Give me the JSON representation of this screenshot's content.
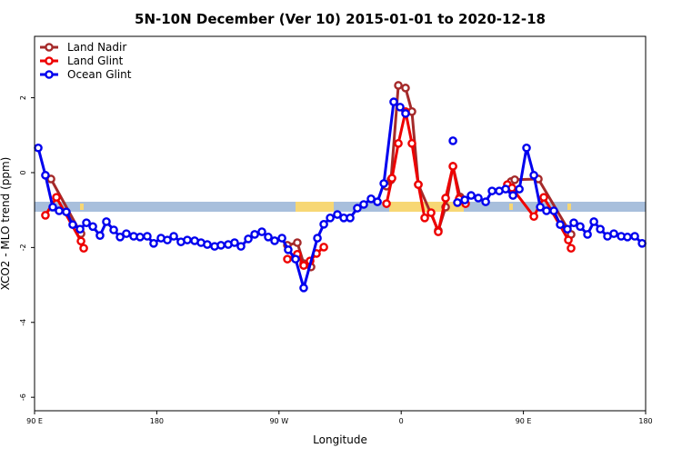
{
  "chart_data": {
    "type": "line",
    "title": "5N-10N December (Ver 10)   2015-01-01 to 2020-12-18",
    "x_label": "Longitude",
    "y_label": "XCO2 - MLO trend (ppm)",
    "xlim": [
      90,
      540
    ],
    "xticks": [
      {
        "value": 90,
        "label": "90 E"
      },
      {
        "value": 180,
        "label": "180"
      },
      {
        "value": 270,
        "label": "90 W"
      },
      {
        "value": 360,
        "label": "0"
      },
      {
        "value": 450,
        "label": "90 E"
      },
      {
        "value": 540,
        "label": "180"
      }
    ],
    "ylim": [
      -6.36,
      3.64
    ],
    "yticks": [
      2,
      0,
      -2,
      -4,
      -6
    ],
    "legend": "top-left",
    "series": [
      {
        "name": "Land Nadir",
        "color": "#a52a2a",
        "x": [
          102.1,
          124.2,
          null,
          276.2,
          283.5,
          288.2,
          293.6,
          null,
          349.2,
          352.5,
          357.9,
          363.2,
          367.9,
          372.6,
          387.3,
          392.7,
          398.1,
          403.4,
          null,
          440.9,
          443.6,
          461.0,
          485.1
        ],
        "values": [
          -0.17,
          -1.63,
          null,
          -1.94,
          -1.87,
          -2.43,
          -2.52,
          null,
          -0.36,
          -0.19,
          2.33,
          2.26,
          1.63,
          -0.32,
          -1.55,
          -0.92,
          0.17,
          -0.65,
          null,
          -0.24,
          -0.19,
          -0.17,
          -1.65
        ]
      },
      {
        "name": "Land Glint",
        "color": "#ee0000",
        "x": [
          98.0,
          106.1,
          124.2,
          126.2,
          null,
          276.2,
          283.5,
          288.2,
          292.9,
          297.6,
          303.0,
          null,
          349.2,
          353.2,
          357.9,
          363.2,
          367.9,
          372.6,
          377.3,
          382.0,
          387.3,
          392.7,
          398.1,
          402.7,
          407.4,
          null,
          438.2,
          441.6,
          457.7,
          465.0,
          483.1,
          485.1
        ],
        "values": [
          -1.14,
          -0.66,
          -1.83,
          -2.02,
          null,
          -2.31,
          -2.18,
          -2.48,
          -2.36,
          -2.16,
          -1.99,
          null,
          -0.83,
          -0.15,
          0.78,
          1.63,
          0.78,
          -0.32,
          -1.21,
          -1.07,
          -1.58,
          -0.68,
          0.17,
          -0.7,
          -0.83,
          null,
          -0.32,
          -0.41,
          -1.17,
          -0.66,
          -1.8,
          -2.02
        ]
      },
      {
        "name": "Ocean Glint",
        "color": "#0000ee",
        "x": [
          92.7,
          98.0,
          103.4,
          108.1,
          113.4,
          118.1,
          123.5,
          128.2,
          132.9,
          138.2,
          142.9,
          148.3,
          153.0,
          157.6,
          163.0,
          167.7,
          173.0,
          177.7,
          183.1,
          187.8,
          192.5,
          197.8,
          202.5,
          207.9,
          212.6,
          217.2,
          222.6,
          227.3,
          232.6,
          237.3,
          242.0,
          247.4,
          252.1,
          257.4,
          262.1,
          266.8,
          272.2,
          276.8,
          282.2,
          288.2,
          298.3,
          303.0,
          307.7,
          313.0,
          317.7,
          322.4,
          327.7,
          332.4,
          337.8,
          342.5,
          347.2,
          354.5,
          359.2,
          363.2,
          null,
          398.1,
          null,
          401.4,
          406.8,
          411.5,
          416.8,
          422.2,
          426.9,
          432.2,
          436.9,
          442.3,
          447.0,
          452.3,
          457.7,
          462.4,
          467.0,
          472.4,
          477.1,
          482.4,
          487.1,
          491.8,
          497.2,
          501.9,
          506.6,
          511.9,
          516.6,
          522.0,
          526.6,
          532.0,
          537.4
        ],
        "values": [
          0.66,
          -0.07,
          -0.92,
          -1.02,
          -1.05,
          -1.39,
          -1.51,
          -1.34,
          -1.44,
          -1.68,
          -1.31,
          -1.53,
          -1.72,
          -1.63,
          -1.7,
          -1.72,
          -1.7,
          -1.89,
          -1.75,
          -1.8,
          -1.7,
          -1.85,
          -1.8,
          -1.82,
          -1.87,
          -1.92,
          -1.97,
          -1.94,
          -1.92,
          -1.87,
          -1.97,
          -1.77,
          -1.65,
          -1.58,
          -1.72,
          -1.82,
          -1.75,
          -2.06,
          -2.31,
          -3.08,
          -1.75,
          -1.38,
          -1.21,
          -1.12,
          -1.21,
          -1.21,
          -0.95,
          -0.85,
          -0.7,
          -0.78,
          -0.29,
          1.89,
          1.75,
          1.58,
          null,
          0.85,
          null,
          -0.8,
          -0.73,
          -0.61,
          -0.68,
          -0.78,
          -0.49,
          -0.49,
          -0.44,
          -0.61,
          -0.44,
          0.66,
          -0.07,
          -0.92,
          -1.02,
          -1.02,
          -1.39,
          -1.51,
          -1.34,
          -1.44,
          -1.65,
          -1.31,
          -1.51,
          -1.7,
          -1.63,
          -1.7,
          -1.72,
          -1.7,
          -1.89
        ]
      }
    ]
  }
}
